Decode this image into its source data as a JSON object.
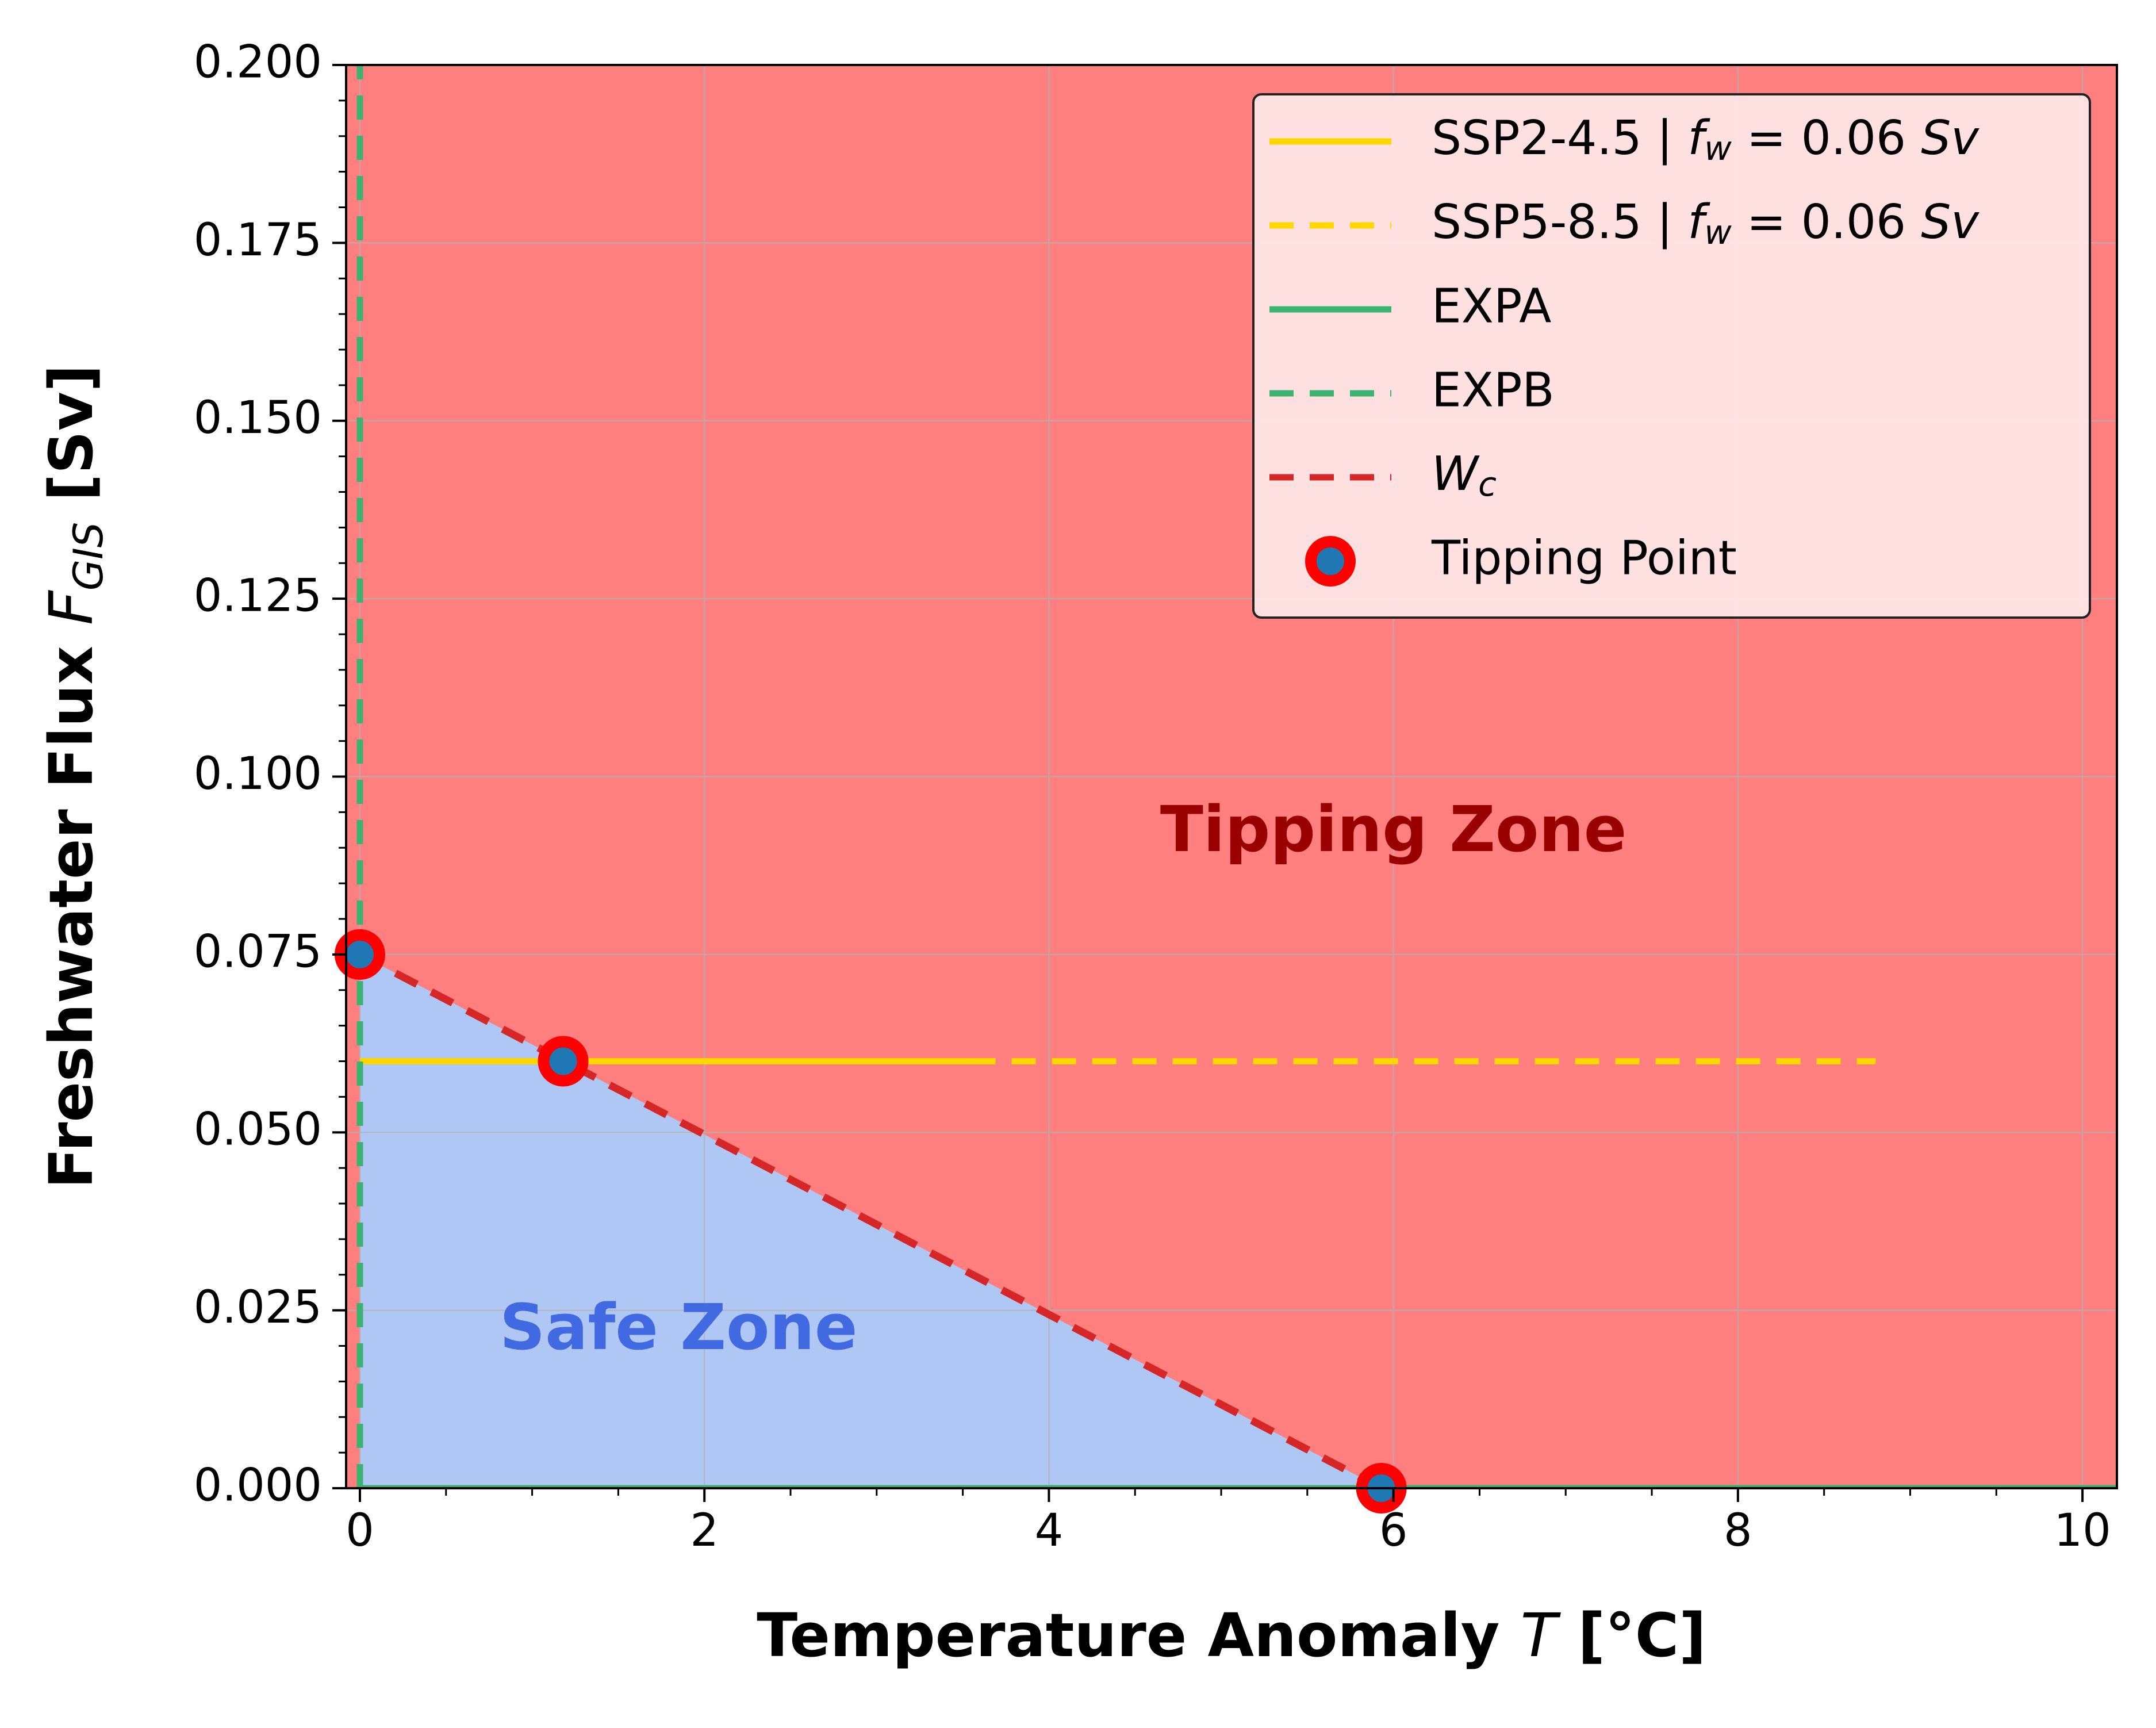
{
  "chart_data": {
    "type": "line",
    "xlabel_prefix": "Temperature Anomaly ",
    "xlabel_var": "T",
    "xlabel_suffix": " [°C]",
    "ylabel_prefix": "Freshwater Flux ",
    "ylabel_var": "F",
    "ylabel_sub": "GIS",
    "ylabel_suffix": " [Sv]",
    "xlim": [
      -0.08,
      10.2
    ],
    "ylim": [
      0,
      0.2
    ],
    "x_ticks": [
      0,
      2,
      4,
      6,
      8,
      10
    ],
    "x_tick_labels": [
      "0",
      "2",
      "4",
      "6",
      "8",
      "10"
    ],
    "y_ticks": [
      0,
      0.025,
      0.05,
      0.075,
      0.1,
      0.125,
      0.15,
      0.175,
      0.2
    ],
    "y_tick_labels": [
      "0.000",
      "0.025",
      "0.050",
      "0.075",
      "0.100",
      "0.125",
      "0.150",
      "0.175",
      "0.200"
    ],
    "grid": true,
    "legend_position": "top-right",
    "zones": [
      {
        "name": "Tipping Zone",
        "color": "#ff7f7f",
        "label_color": "#990000",
        "label_x": 6.0,
        "label_y": 0.092
      },
      {
        "name": "Safe Zone",
        "color": "#aec7f5",
        "label_color": "#4169e1",
        "label_x": 1.85,
        "label_y": 0.022
      }
    ],
    "series": [
      {
        "name_prefix": "SSP2-4.5 | ",
        "fw_label": "0.06",
        "unit": "Sv",
        "style": "solid",
        "color": "#ffd700",
        "x": [
          0,
          3.55
        ],
        "y": [
          0.06,
          0.06
        ]
      },
      {
        "name_prefix": "SSP5-8.5 | ",
        "fw_label": "0.06",
        "unit": "Sv",
        "style": "dashed",
        "color": "#ffd700",
        "x": [
          3.55,
          8.8
        ],
        "y": [
          0.06,
          0.06
        ]
      },
      {
        "name": "EXPA",
        "style": "solid",
        "color": "#3cb371",
        "x": [
          0,
          10.2
        ],
        "y": [
          0,
          0
        ]
      },
      {
        "name": "EXPB",
        "style": "dashed",
        "color": "#3cb371",
        "x": [
          0,
          0
        ],
        "y": [
          0,
          0.2
        ]
      },
      {
        "name_var": "W",
        "name_sub": "c",
        "style": "dashed",
        "color": "#d62728",
        "x": [
          0,
          5.93
        ],
        "y": [
          0.075,
          0
        ]
      }
    ],
    "tipping_points": {
      "name": "Tipping Point",
      "edge_color": "#ff0000",
      "fill_color": "#1f77b4",
      "points": [
        {
          "x": 0,
          "y": 0.075
        },
        {
          "x": 1.18,
          "y": 0.06
        },
        {
          "x": 5.93,
          "y": 0.0
        }
      ]
    }
  }
}
